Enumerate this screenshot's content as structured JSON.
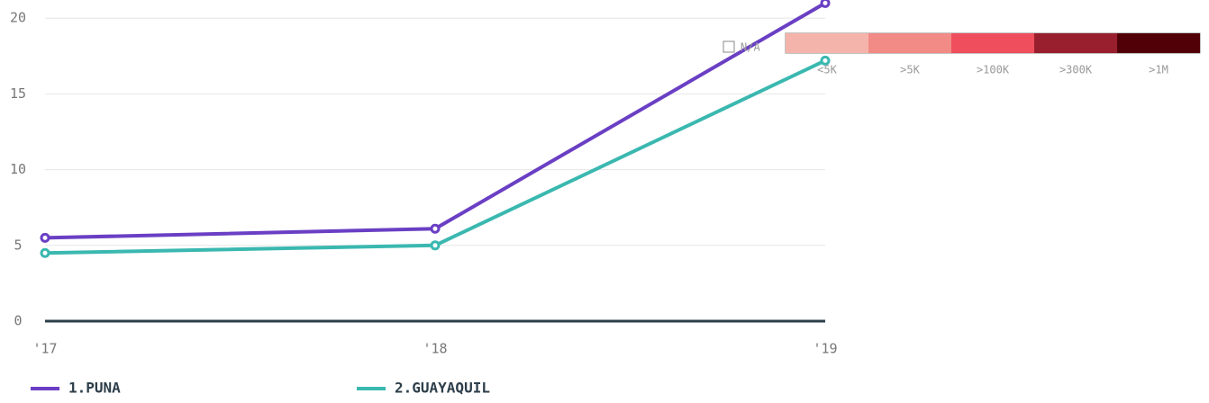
{
  "chart_data": {
    "type": "line",
    "categories": [
      "'17",
      "'18",
      "'19"
    ],
    "series": [
      {
        "name": "1.PUNA",
        "color": "#6a3fc4",
        "values": [
          5.5,
          6.1,
          21
        ]
      },
      {
        "name": "2.GUAYAQUIL",
        "color": "#3ab8b0",
        "values": [
          4.5,
          5.0,
          17.2
        ]
      }
    ],
    "ylim": [
      0,
      21.2
    ],
    "yticks": [
      0,
      5,
      10,
      15,
      20
    ],
    "grid": true,
    "color_legend": {
      "na_label": "N/A",
      "bins": [
        {
          "label": "<5K",
          "color": "#f4b4ab"
        },
        {
          "label": ">5K",
          "color": "#f28a85"
        },
        {
          "label": ">100K",
          "color": "#ef4e5d"
        },
        {
          "label": ">300K",
          "color": "#9a1f2e"
        },
        {
          "label": ">1M",
          "color": "#520008"
        }
      ]
    }
  }
}
